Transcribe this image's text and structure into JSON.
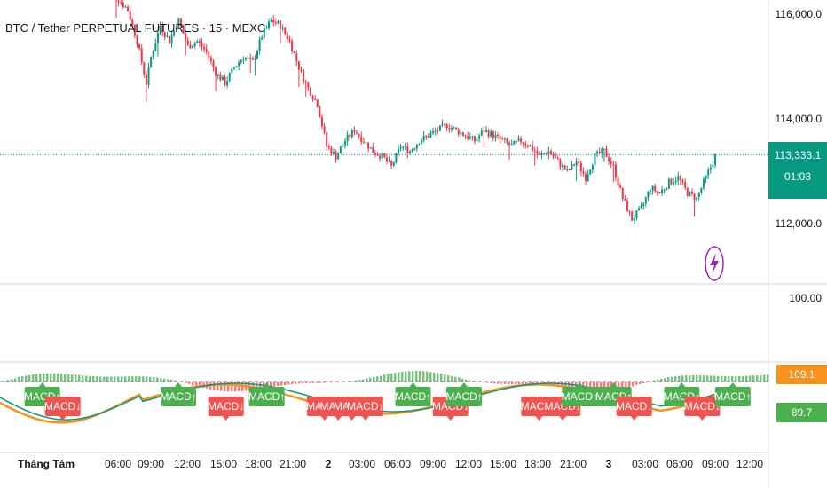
{
  "title": "BTC / Tether PERPETUAL FUTURES · 15 · MEXC",
  "price_axis": {
    "labels": [
      "116,000.0",
      "114,000.0",
      "112,000.0"
    ],
    "indicator_level": "100.00"
  },
  "last_price": {
    "value": "113,333.1",
    "countdown": "01:03"
  },
  "indicator_values": [
    "109.1",
    "89.7"
  ],
  "time_axis": [
    "Tháng Tám",
    "06:00",
    "09:00",
    "12:00",
    "15:00",
    "18:00",
    "21:00",
    "2",
    "03:00",
    "06:00",
    "09:00",
    "12:00",
    "15:00",
    "18:00",
    "21:00",
    "3",
    "03:00",
    "06:00",
    "09:00",
    "12:00"
  ],
  "signal_labels": {
    "up": "MACD↑",
    "down": "MACD↓"
  },
  "colors": {
    "up": "#089981",
    "down": "#f23645",
    "macd": "#089981",
    "signal": "#f7931a",
    "signal_up_bg": "#4caf50",
    "signal_down_bg": "#f05350"
  },
  "chart_data": {
    "type": "candlestick",
    "symbol": "BTC / Tether PERPETUAL FUTURES",
    "interval": "15",
    "exchange": "MEXC",
    "ylim": [
      111000,
      116400
    ],
    "price_path": [
      [
        0,
        116450
      ],
      [
        6,
        116300
      ],
      [
        10,
        116100
      ],
      [
        14,
        115500
      ],
      [
        18,
        114700
      ],
      [
        20,
        115200
      ],
      [
        24,
        115800
      ],
      [
        28,
        115500
      ],
      [
        32,
        115900
      ],
      [
        36,
        115400
      ],
      [
        40,
        115500
      ],
      [
        44,
        115300
      ],
      [
        48,
        114900
      ],
      [
        52,
        114700
      ],
      [
        56,
        115000
      ],
      [
        60,
        115200
      ],
      [
        64,
        115100
      ],
      [
        68,
        115600
      ],
      [
        72,
        115900
      ],
      [
        76,
        115800
      ],
      [
        80,
        115500
      ],
      [
        84,
        115000
      ],
      [
        88,
        114600
      ],
      [
        92,
        114300
      ],
      [
        96,
        113500
      ],
      [
        100,
        113300
      ],
      [
        104,
        113600
      ],
      [
        108,
        113800
      ],
      [
        112,
        113600
      ],
      [
        116,
        113400
      ],
      [
        120,
        113300
      ],
      [
        124,
        113100
      ],
      [
        128,
        113500
      ],
      [
        132,
        113400
      ],
      [
        136,
        113600
      ],
      [
        140,
        113700
      ],
      [
        144,
        113800
      ],
      [
        148,
        113900
      ],
      [
        152,
        113800
      ],
      [
        156,
        113700
      ],
      [
        160,
        113600
      ],
      [
        164,
        113800
      ],
      [
        168,
        113700
      ],
      [
        172,
        113600
      ],
      [
        176,
        113500
      ],
      [
        180,
        113600
      ],
      [
        184,
        113500
      ],
      [
        188,
        113300
      ],
      [
        192,
        113400
      ],
      [
        196,
        113200
      ],
      [
        200,
        113000
      ],
      [
        204,
        113200
      ],
      [
        208,
        112900
      ],
      [
        212,
        113300
      ],
      [
        216,
        113400
      ],
      [
        220,
        113100
      ],
      [
        224,
        112500
      ],
      [
        228,
        112100
      ],
      [
        232,
        112300
      ],
      [
        236,
        112700
      ],
      [
        240,
        112600
      ],
      [
        244,
        112800
      ],
      [
        248,
        112900
      ],
      [
        252,
        112600
      ],
      [
        256,
        112500
      ],
      [
        260,
        112900
      ],
      [
        264,
        113300
      ]
    ],
    "signal_markers": [
      {
        "i": 2,
        "dir": "up"
      },
      {
        "i": 8,
        "dir": "down"
      },
      {
        "i": 42,
        "dir": "up"
      },
      {
        "i": 56,
        "dir": "down"
      },
      {
        "i": 68,
        "dir": "up"
      },
      {
        "i": 85,
        "dir": "down"
      },
      {
        "i": 89,
        "dir": "down"
      },
      {
        "i": 93,
        "dir": "down"
      },
      {
        "i": 97,
        "dir": "down"
      },
      {
        "i": 111,
        "dir": "up"
      },
      {
        "i": 122,
        "dir": "down"
      },
      {
        "i": 126,
        "dir": "up"
      },
      {
        "i": 148,
        "dir": "down"
      },
      {
        "i": 155,
        "dir": "down"
      },
      {
        "i": 160,
        "dir": "up"
      },
      {
        "i": 170,
        "dir": "up"
      },
      {
        "i": 176,
        "dir": "down"
      },
      {
        "i": 190,
        "dir": "up"
      },
      {
        "i": 196,
        "dir": "down"
      },
      {
        "i": 205,
        "dir": "up"
      }
    ]
  }
}
